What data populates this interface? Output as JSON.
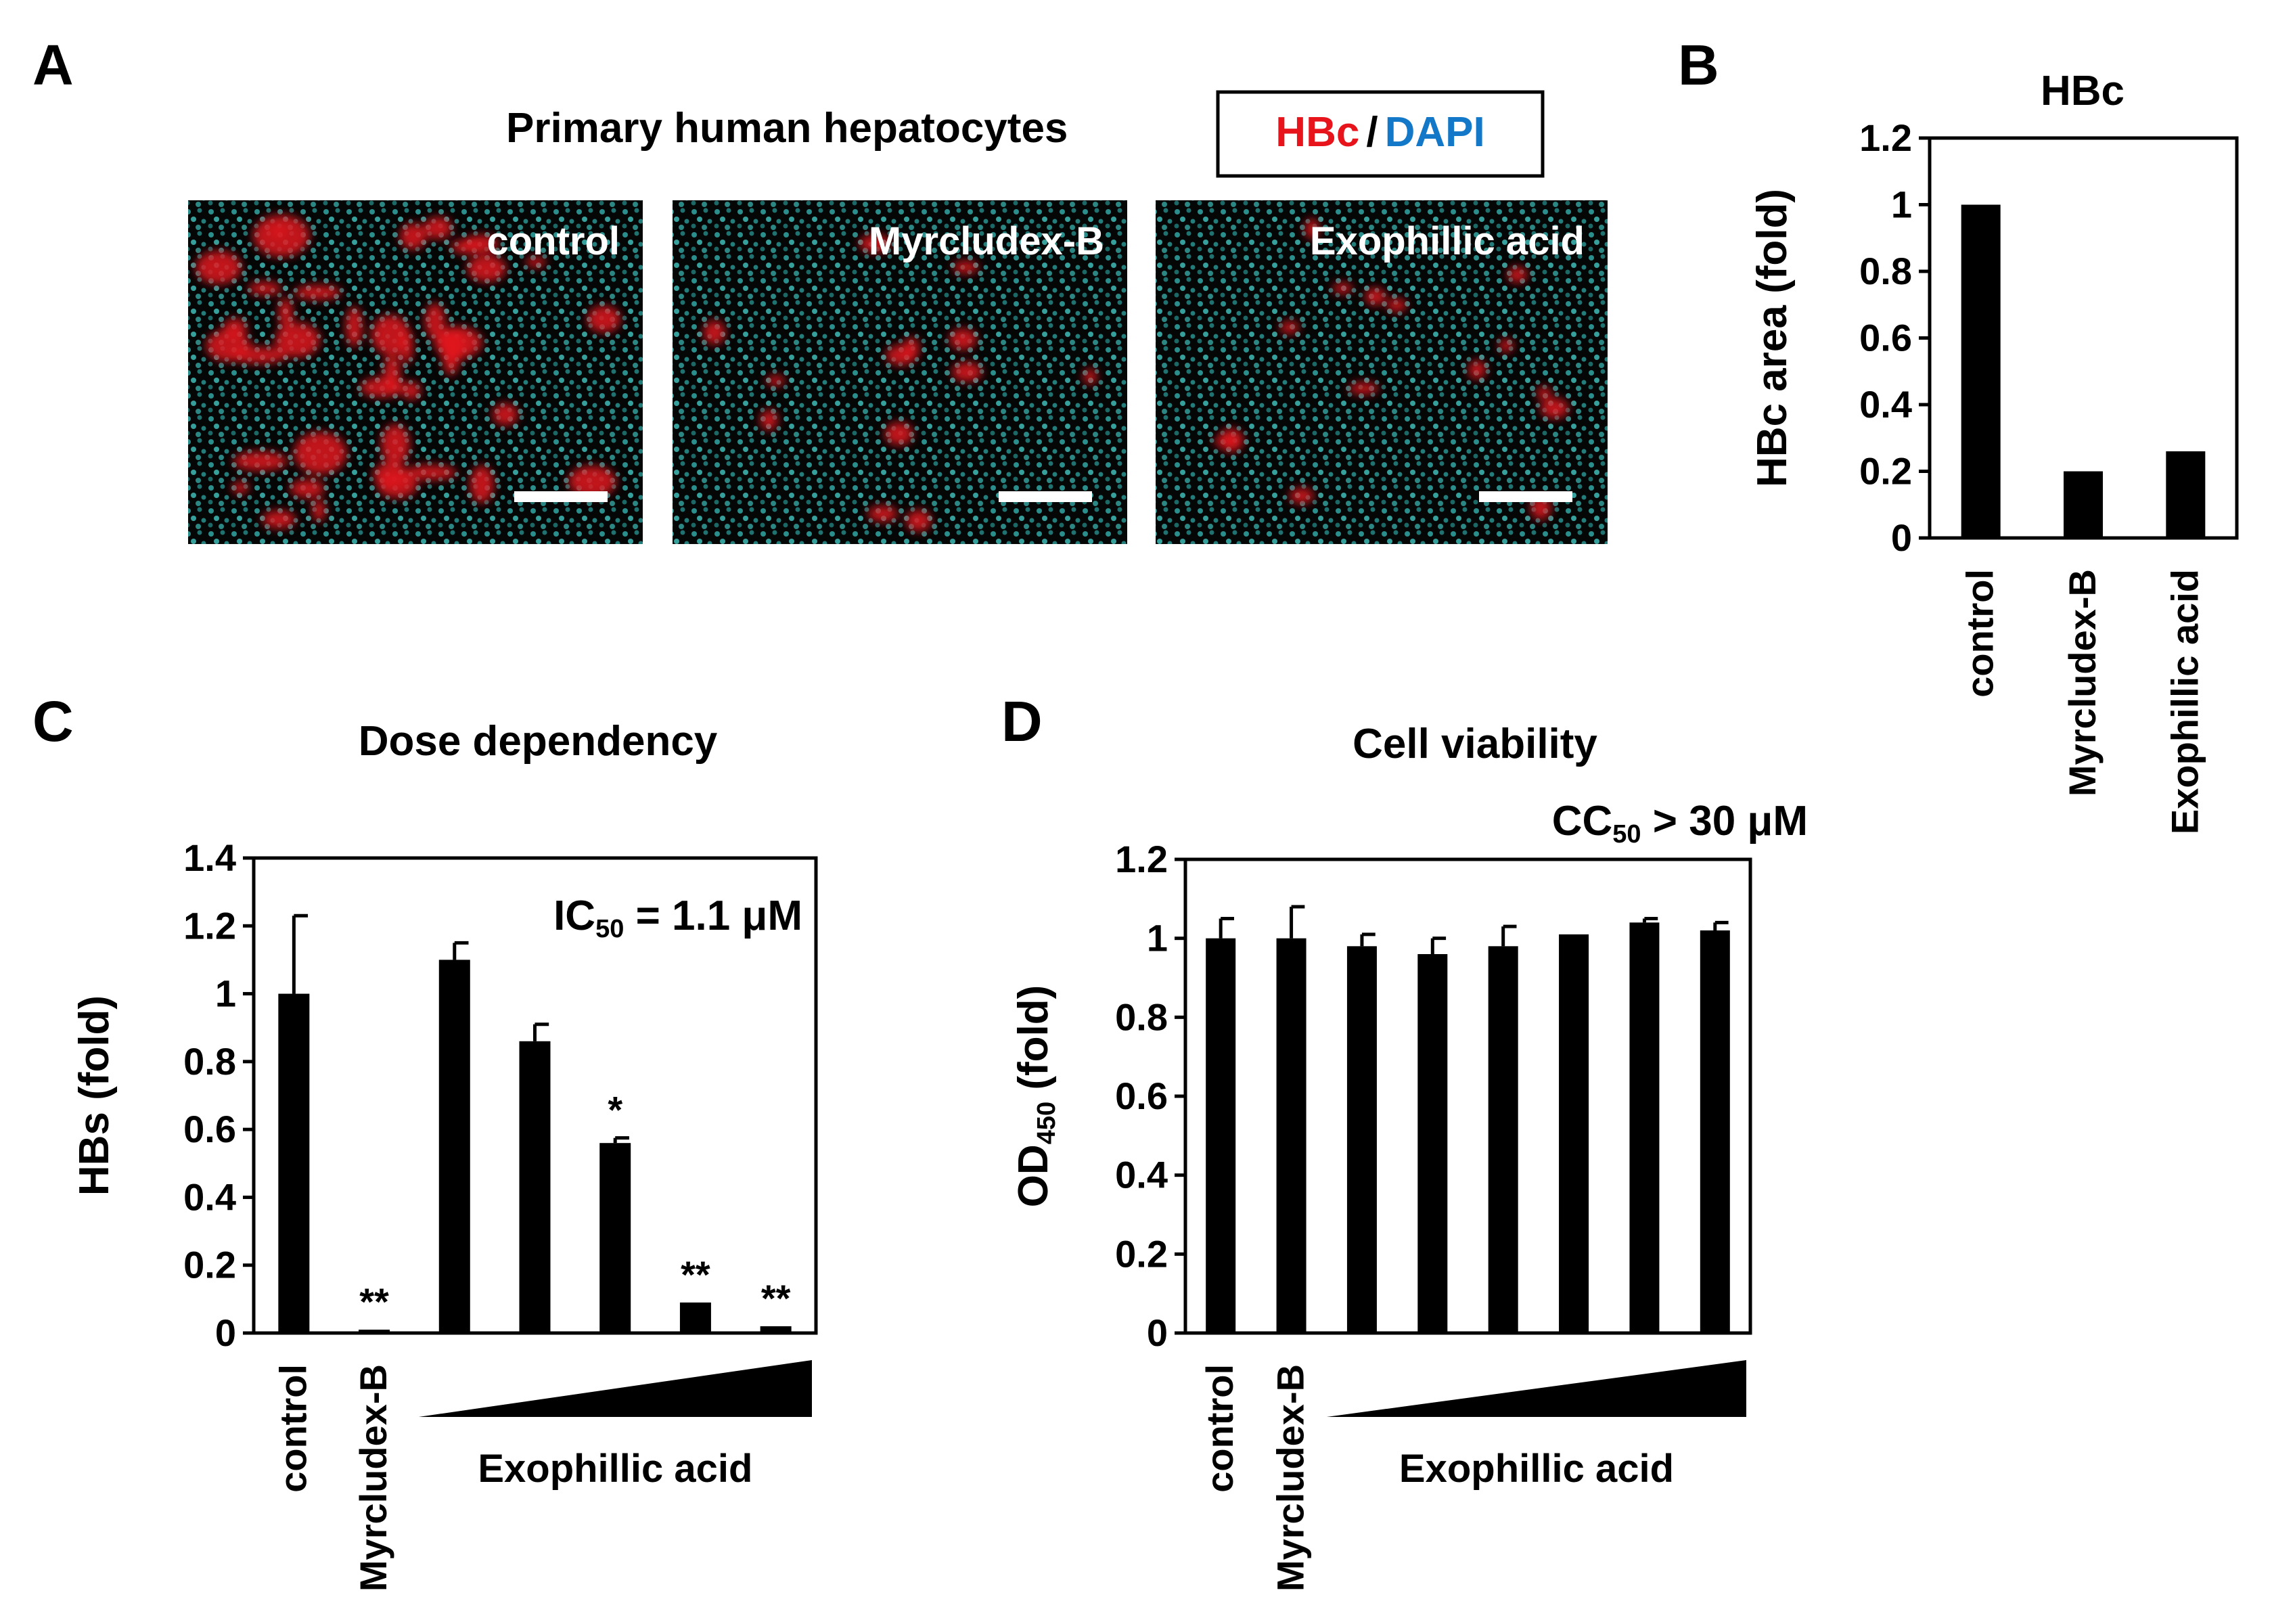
{
  "panel_a": {
    "letter": "A",
    "title": "Primary human hepatocytes",
    "legend": {
      "hbc": "HBc",
      "sep": "/",
      "dapi": "DAPI",
      "hbc_color": "#e8141c",
      "dapi_color": "#1378c8"
    },
    "images": [
      {
        "label": "control",
        "red_level": 1.0
      },
      {
        "label": "Myrcludex-B",
        "red_level": 0.2
      },
      {
        "label": "Exophillic acid",
        "red_level": 0.26
      }
    ]
  },
  "panel_b": {
    "letter": "B"
  },
  "panel_c": {
    "letter": "C",
    "title": "Dose dependency"
  },
  "panel_d": {
    "letter": "D",
    "title": "Cell viability"
  },
  "chart_data": [
    {
      "id": "B",
      "type": "bar",
      "title": "HBc",
      "ylabel": "HBc area (fold)",
      "ylim": [
        0,
        1.2
      ],
      "yticks": [
        "0",
        "0.2",
        "0.4",
        "0.6",
        "0.8",
        "1",
        "1.2"
      ],
      "categories": [
        "control",
        "Myrcludex-B",
        "Exophillic acid"
      ],
      "values": [
        1.0,
        0.2,
        0.26
      ]
    },
    {
      "id": "C",
      "type": "bar",
      "title": "Dose dependency",
      "ylabel": "HBs (fold)",
      "ylim": [
        0,
        1.4
      ],
      "yticks": [
        "0",
        "0.2",
        "0.4",
        "0.6",
        "0.8",
        "1",
        "1.2",
        "1.4"
      ],
      "annotation": {
        "prefix": "IC",
        "sub": "50",
        "suffix": " = 1.1 μM"
      },
      "categories": [
        "control",
        "Myrcludex-B",
        "",
        "",
        "",
        "",
        ""
      ],
      "group_label": "Exophillic acid",
      "values": [
        1.0,
        0.01,
        1.1,
        0.86,
        0.56,
        0.09,
        0.02
      ],
      "errors": [
        0.23,
        0.0,
        0.05,
        0.05,
        0.015,
        0.0,
        0.0
      ],
      "significance": [
        "",
        "**",
        "",
        "",
        "*",
        "**",
        "**"
      ]
    },
    {
      "id": "D",
      "type": "bar",
      "title": "Cell viability",
      "ylabel": {
        "prefix": "OD",
        "sub": "450",
        "suffix": " (fold)"
      },
      "ylim": [
        0,
        1.2
      ],
      "yticks": [
        "0",
        "0.2",
        "0.4",
        "0.6",
        "0.8",
        "1",
        "1.2"
      ],
      "annotation": {
        "prefix": "CC",
        "sub": "50",
        "suffix": " > 30 μM"
      },
      "categories": [
        "control",
        "Myrcludex-B",
        "",
        "",
        "",
        "",
        "",
        ""
      ],
      "group_label": "Exophillic acid",
      "values": [
        1.0,
        1.0,
        0.98,
        0.96,
        0.98,
        1.01,
        1.04,
        1.02
      ],
      "errors": [
        0.05,
        0.08,
        0.03,
        0.04,
        0.05,
        0.0,
        0.01,
        0.02
      ]
    }
  ]
}
